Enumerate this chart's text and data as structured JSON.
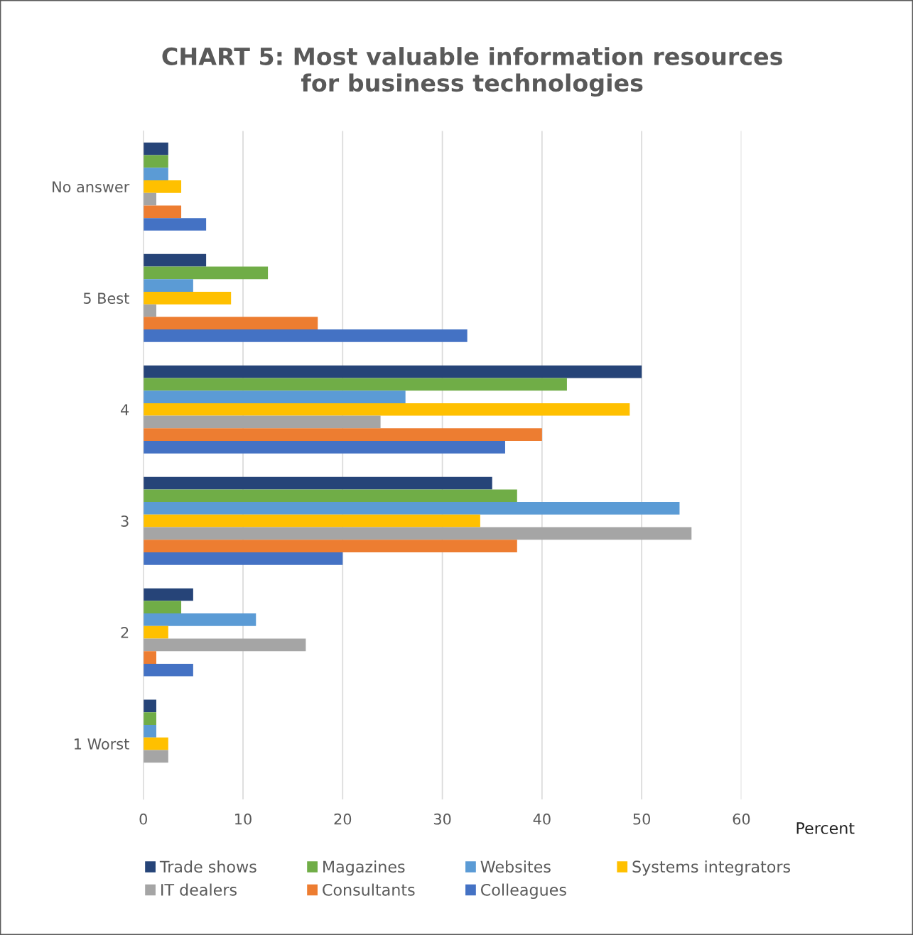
{
  "chart_data": {
    "type": "bar",
    "orientation": "horizontal",
    "title": "CHART 5: Most valuable information resources\nfor business technologies",
    "xlabel": "Percent",
    "categories": [
      "No answer",
      "5 Best",
      "4",
      "3",
      "2",
      "1 Worst"
    ],
    "series": [
      {
        "name": "Trade shows",
        "color": "#264478",
        "values": [
          2.5,
          6.3,
          50,
          35,
          5,
          1.3
        ]
      },
      {
        "name": "Magazines",
        "color": "#70ad47",
        "values": [
          2.5,
          12.5,
          42.5,
          37.5,
          3.8,
          1.3
        ]
      },
      {
        "name": "Websites",
        "color": "#5b9bd5",
        "values": [
          2.5,
          5,
          26.3,
          53.8,
          11.3,
          1.3
        ]
      },
      {
        "name": "Systems integrators",
        "color": "#ffc000",
        "values": [
          3.8,
          8.8,
          48.8,
          33.8,
          2.5,
          2.5
        ]
      },
      {
        "name": "IT dealers",
        "color": "#a5a5a5",
        "values": [
          1.3,
          1.3,
          23.8,
          55,
          16.3,
          2.5
        ]
      },
      {
        "name": "Consultants",
        "color": "#ed7d31",
        "values": [
          3.8,
          17.5,
          40,
          37.5,
          1.3,
          0
        ]
      },
      {
        "name": "Colleagues",
        "color": "#4472c4",
        "values": [
          6.3,
          32.5,
          36.3,
          20,
          5,
          0
        ]
      }
    ],
    "xlim": [
      0,
      60
    ],
    "xticks": [
      0,
      10,
      20,
      30,
      40,
      50,
      60
    ],
    "grid": "x",
    "legend": "bottom"
  }
}
